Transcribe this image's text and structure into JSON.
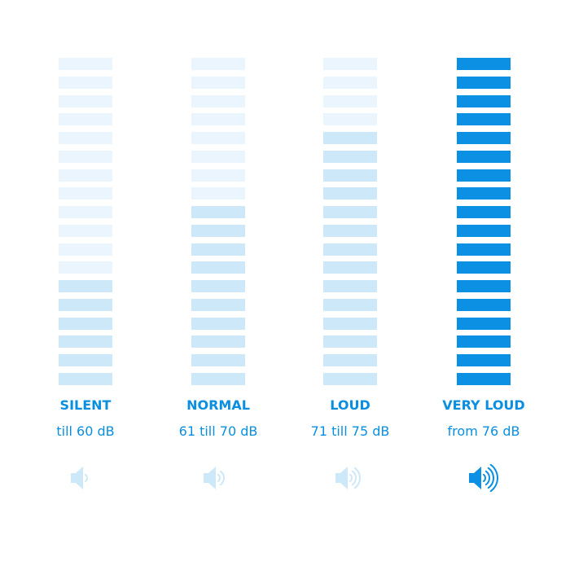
{
  "colors": {
    "off": "#eaf5fd",
    "on": "#cde8f8",
    "active": "#0b90e3",
    "text": "#0a8fe0"
  },
  "segments_total": 18,
  "levels": [
    {
      "label": "SILENT",
      "range": "till 60 dB",
      "lit_segments": 6,
      "waves": 1,
      "active": false,
      "icon": "speaker-icon"
    },
    {
      "label": "NORMAL",
      "range": "61 till 70 dB",
      "lit_segments": 10,
      "waves": 2,
      "active": false,
      "icon": "speaker-icon"
    },
    {
      "label": "LOUD",
      "range": "71 till 75 dB",
      "lit_segments": 14,
      "waves": 3,
      "active": false,
      "icon": "speaker-icon"
    },
    {
      "label": "VERY LOUD",
      "range": "from 76 dB",
      "lit_segments": 18,
      "waves": 4,
      "active": true,
      "icon": "speaker-icon"
    }
  ]
}
